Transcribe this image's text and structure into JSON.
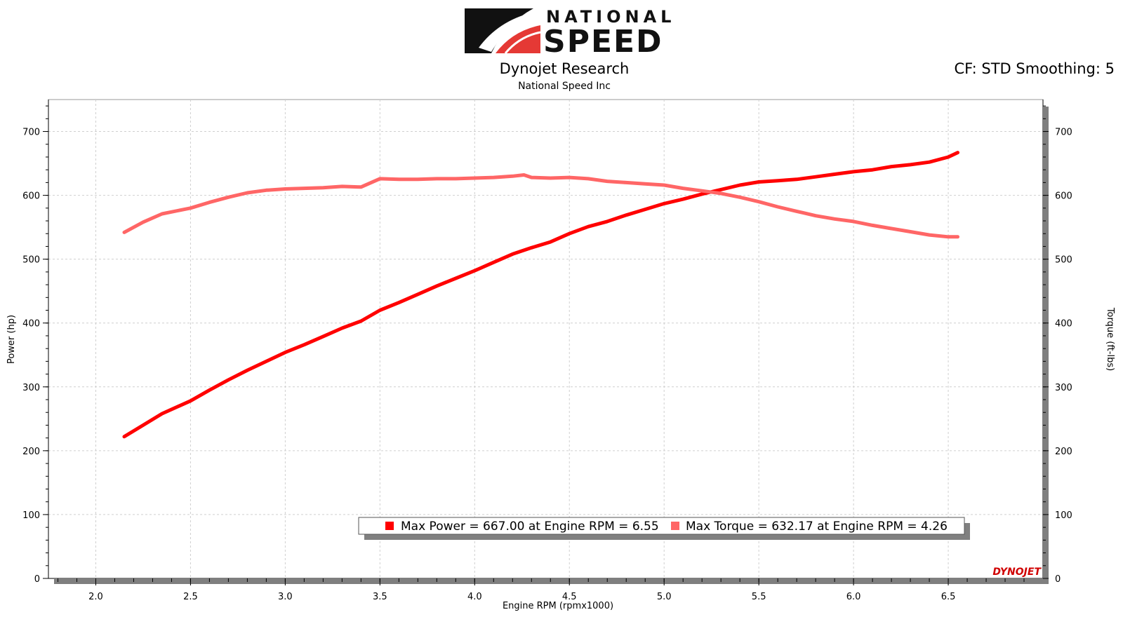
{
  "header": {
    "logo_top": "NATIONAL",
    "logo_bottom": "SPEED",
    "title": "Dynojet Research",
    "company": "National Speed Inc",
    "correction": "CF: STD Smoothing: 5"
  },
  "watermark": "DYNOJET",
  "colors": {
    "power": "#ff0000",
    "torque": "#ff6666",
    "logo_red": "#e53935"
  },
  "chart_data": {
    "type": "line",
    "xlabel": "Engine RPM (rpmx1000)",
    "ylabel_left": "Power (hp)",
    "ylabel_right": "Torque (ft-lbs)",
    "xlim": [
      1.75,
      7.0
    ],
    "ylim": [
      0,
      750
    ],
    "xticks": [
      "2.0",
      "2.5",
      "3.0",
      "3.5",
      "4.0",
      "4.5",
      "5.0",
      "5.5",
      "6.0",
      "6.5"
    ],
    "yticks": [
      "0",
      "100",
      "200",
      "300",
      "400",
      "500",
      "600",
      "700"
    ],
    "grid": true,
    "legend": {
      "placement": "bottom-center",
      "entries": [
        "Max Power = 667.00 at Engine RPM = 6.55",
        "Max Torque = 632.17 at Engine RPM = 4.26"
      ]
    },
    "series": [
      {
        "color": "#ff0000",
        "x": [
          2.15,
          2.25,
          2.35,
          2.5,
          2.6,
          2.7,
          2.8,
          2.9,
          3.0,
          3.1,
          3.2,
          3.3,
          3.4,
          3.5,
          3.6,
          3.7,
          3.8,
          3.9,
          4.0,
          4.1,
          4.2,
          4.3,
          4.4,
          4.5,
          4.6,
          4.7,
          4.8,
          4.9,
          5.0,
          5.1,
          5.2,
          5.3,
          5.4,
          5.5,
          5.6,
          5.7,
          5.8,
          5.9,
          6.0,
          6.1,
          6.2,
          6.3,
          6.4,
          6.5,
          6.55
        ],
        "y": [
          222,
          240,
          258,
          278,
          295,
          311,
          326,
          340,
          354,
          366,
          379,
          392,
          403,
          420,
          432,
          445,
          458,
          470,
          482,
          495,
          508,
          518,
          527,
          540,
          551,
          559,
          569,
          578,
          587,
          594,
          602,
          609,
          616,
          621,
          623,
          625,
          629,
          633,
          637,
          640,
          645,
          648,
          652,
          660,
          667
        ]
      },
      {
        "color": "#ff6666",
        "x": [
          2.15,
          2.25,
          2.35,
          2.5,
          2.6,
          2.7,
          2.8,
          2.9,
          3.0,
          3.1,
          3.2,
          3.3,
          3.4,
          3.5,
          3.6,
          3.7,
          3.8,
          3.9,
          4.0,
          4.1,
          4.2,
          4.26,
          4.3,
          4.4,
          4.5,
          4.6,
          4.7,
          4.8,
          4.9,
          5.0,
          5.1,
          5.2,
          5.3,
          5.4,
          5.5,
          5.6,
          5.7,
          5.8,
          5.9,
          6.0,
          6.1,
          6.2,
          6.3,
          6.4,
          6.5,
          6.55
        ],
        "y": [
          542,
          558,
          571,
          580,
          589,
          597,
          604,
          608,
          610,
          611,
          612,
          614,
          613,
          626,
          625,
          625,
          626,
          626,
          627,
          628,
          630,
          632,
          628,
          627,
          628,
          626,
          622,
          620,
          618,
          616,
          611,
          607,
          603,
          597,
          590,
          582,
          575,
          568,
          563,
          559,
          553,
          548,
          543,
          538,
          535,
          535
        ]
      }
    ]
  }
}
